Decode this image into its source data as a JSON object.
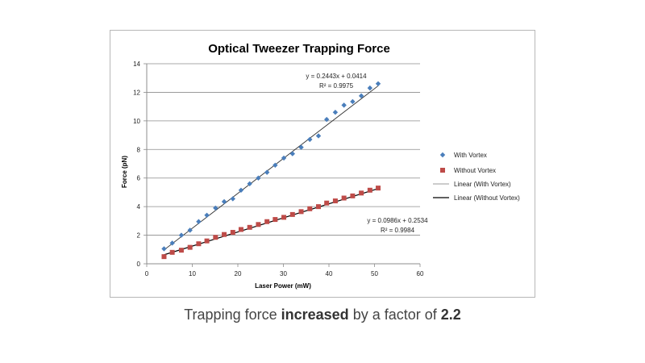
{
  "chart_data": {
    "type": "scatter",
    "title": "Optical Tweezer Trapping Force",
    "xlabel": "Laser Power (mW)",
    "ylabel": "Force (pN)",
    "xlim": [
      0,
      60
    ],
    "ylim": [
      0,
      14
    ],
    "x_ticks": [
      "0",
      "10",
      "20",
      "30",
      "40",
      "50",
      "60"
    ],
    "y_ticks": [
      "0",
      "2",
      "4",
      "6",
      "8",
      "10",
      "12",
      "14"
    ],
    "grid": "horizontal major gridlines",
    "legend_position": "right",
    "series": [
      {
        "name": "With Vortex",
        "marker": "diamond",
        "color": "#4a7ebb",
        "x": [
          3.8,
          5.6,
          7.6,
          9.5,
          11.4,
          13.2,
          15.1,
          17.0,
          18.9,
          20.7,
          22.6,
          24.5,
          26.4,
          28.2,
          30.1,
          32.0,
          33.9,
          35.8,
          37.7,
          39.5,
          41.4,
          43.3,
          45.2,
          47.1,
          49.0,
          50.8
        ],
        "y": [
          1.05,
          1.45,
          2.0,
          2.35,
          2.95,
          3.4,
          3.9,
          4.35,
          4.55,
          5.15,
          5.6,
          6.0,
          6.4,
          6.9,
          7.4,
          7.7,
          8.15,
          8.7,
          8.95,
          10.1,
          10.6,
          11.1,
          11.35,
          11.75,
          12.3,
          12.6
        ]
      },
      {
        "name": "Without Vortex",
        "marker": "square",
        "color": "#be4b48",
        "x": [
          3.8,
          5.6,
          7.6,
          9.5,
          11.4,
          13.2,
          15.1,
          17.0,
          18.9,
          20.7,
          22.6,
          24.5,
          26.4,
          28.2,
          30.1,
          32.0,
          33.9,
          35.8,
          37.7,
          39.5,
          41.4,
          43.3,
          45.2,
          47.1,
          49.0,
          50.8
        ],
        "y": [
          0.5,
          0.8,
          0.95,
          1.15,
          1.4,
          1.6,
          1.85,
          2.05,
          2.2,
          2.4,
          2.55,
          2.75,
          2.95,
          3.1,
          3.25,
          3.45,
          3.65,
          3.85,
          4.0,
          4.25,
          4.4,
          4.6,
          4.75,
          4.95,
          5.15,
          5.3
        ]
      }
    ],
    "trendlines": [
      {
        "name": "Linear (With Vortex)",
        "slope": 0.2443,
        "intercept": 0.0414,
        "x_range": [
          3.8,
          50.8
        ],
        "color": "#2c2c2c",
        "equation": "y = 0.2443x + 0.0414",
        "r_squared": "R² = 0.9975"
      },
      {
        "name": "Linear (Without Vortex)",
        "slope": 0.0986,
        "intercept": 0.2534,
        "x_range": [
          3.8,
          50.8
        ],
        "color": "#000000",
        "equation": "y = 0.0986x + 0.2534",
        "r_squared": "R² = 0.9984"
      }
    ]
  },
  "caption": {
    "text_before": "Trapping force ",
    "bold_word": "increased",
    "text_middle": " by a factor of ",
    "bold_value": "2.2"
  }
}
